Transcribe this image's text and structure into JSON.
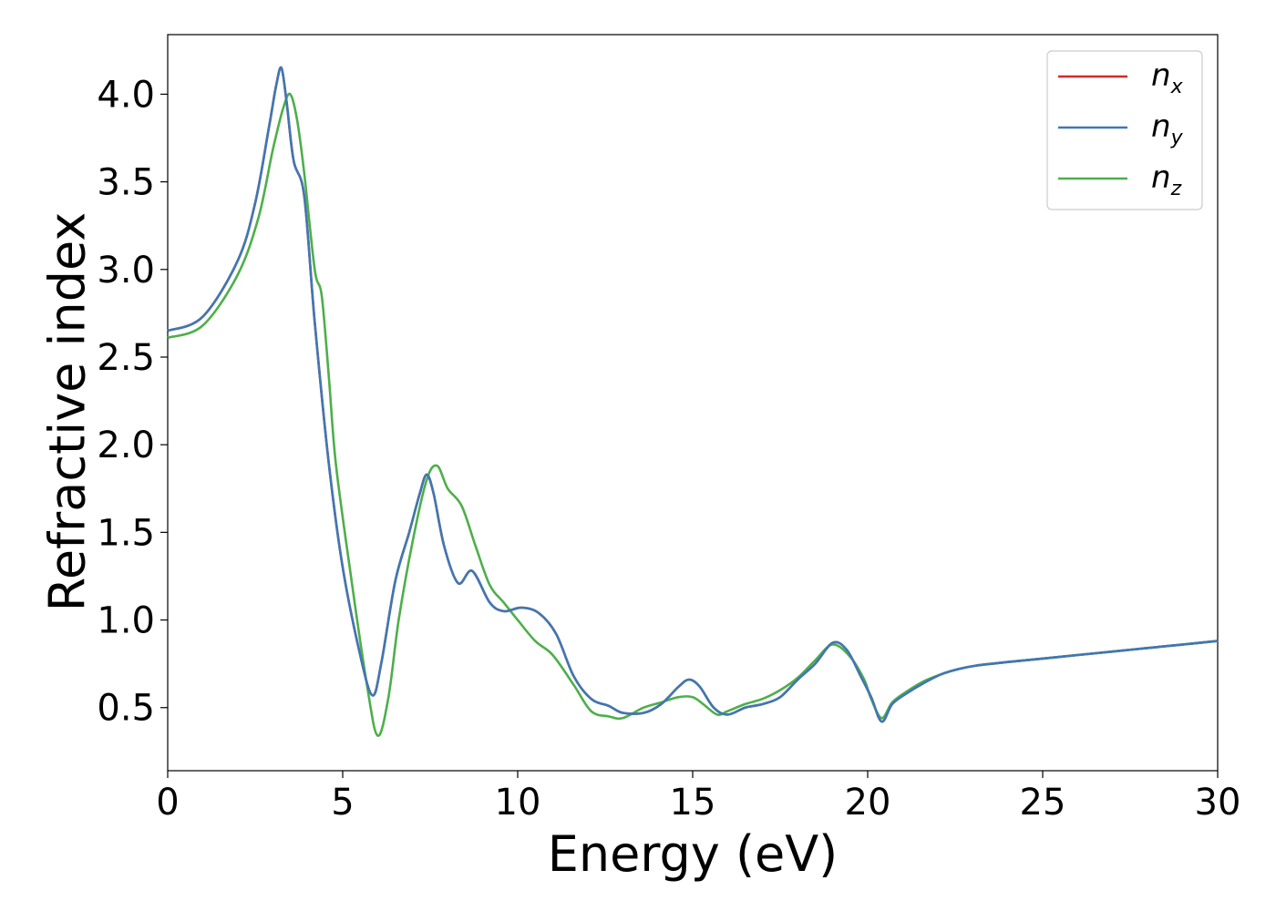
{
  "chart_data": {
    "type": "line",
    "title": "",
    "xlabel": "Energy (eV)",
    "ylabel": "Refractive index",
    "xlim": [
      0,
      30
    ],
    "ylim": [
      0.14,
      4.34
    ],
    "xticks": [
      0,
      5,
      10,
      15,
      20,
      25,
      30
    ],
    "xtick_labels": [
      "0",
      "5",
      "10",
      "15",
      "20",
      "25",
      "30"
    ],
    "yticks": [
      0.5,
      1.0,
      1.5,
      2.0,
      2.5,
      3.0,
      3.5,
      4.0
    ],
    "ytick_labels": [
      "0.5",
      "1.0",
      "1.5",
      "2.0",
      "2.5",
      "3.0",
      "3.5",
      "4.0"
    ],
    "grid": false,
    "legend_position": "top-right",
    "series": [
      {
        "name": "n",
        "subscript": "x",
        "color": "#d62728",
        "x": [
          0,
          1,
          2,
          2.5,
          2.9,
          3.1,
          3.25,
          3.4,
          3.6,
          3.9,
          4.2,
          4.6,
          5.0,
          5.5,
          5.85,
          6.1,
          6.5,
          6.9,
          7.2,
          7.4,
          7.6,
          7.9,
          8.3,
          8.7,
          9.2,
          9.6,
          10.1,
          10.6,
          11.1,
          11.6,
          12.1,
          12.6,
          13.0,
          13.6,
          14.1,
          14.6,
          14.9,
          15.2,
          15.6,
          16.0,
          16.5,
          17.0,
          17.5,
          18.0,
          18.5,
          19.0,
          19.4,
          19.8,
          20.1,
          20.4,
          20.7,
          21.1,
          21.6,
          22.1,
          22.6,
          23.1,
          24.0,
          25.0,
          26.0,
          27.0,
          28.0,
          29.0,
          30.0
        ],
        "values": [
          2.65,
          2.73,
          3.05,
          3.38,
          3.82,
          4.05,
          4.15,
          3.95,
          3.62,
          3.42,
          2.7,
          1.9,
          1.3,
          0.8,
          0.57,
          0.75,
          1.22,
          1.5,
          1.72,
          1.83,
          1.72,
          1.42,
          1.21,
          1.28,
          1.1,
          1.05,
          1.07,
          1.04,
          0.92,
          0.68,
          0.55,
          0.51,
          0.47,
          0.47,
          0.52,
          0.62,
          0.66,
          0.62,
          0.5,
          0.46,
          0.5,
          0.52,
          0.56,
          0.66,
          0.75,
          0.87,
          0.83,
          0.68,
          0.56,
          0.42,
          0.52,
          0.58,
          0.64,
          0.69,
          0.72,
          0.74,
          0.76,
          0.78,
          0.8,
          0.82,
          0.84,
          0.86,
          0.88
        ]
      },
      {
        "name": "n",
        "subscript": "y",
        "color": "#3e78b4",
        "x": [
          0,
          1,
          2,
          2.5,
          2.9,
          3.1,
          3.25,
          3.4,
          3.6,
          3.9,
          4.2,
          4.6,
          5.0,
          5.5,
          5.85,
          6.1,
          6.5,
          6.9,
          7.2,
          7.4,
          7.6,
          7.9,
          8.3,
          8.7,
          9.2,
          9.6,
          10.1,
          10.6,
          11.1,
          11.6,
          12.1,
          12.6,
          13.0,
          13.6,
          14.1,
          14.6,
          14.9,
          15.2,
          15.6,
          16.0,
          16.5,
          17.0,
          17.5,
          18.0,
          18.5,
          19.0,
          19.4,
          19.8,
          20.1,
          20.4,
          20.7,
          21.1,
          21.6,
          22.1,
          22.6,
          23.1,
          24.0,
          25.0,
          26.0,
          27.0,
          28.0,
          29.0,
          30.0
        ],
        "values": [
          2.65,
          2.73,
          3.05,
          3.38,
          3.82,
          4.05,
          4.15,
          3.95,
          3.62,
          3.42,
          2.7,
          1.9,
          1.3,
          0.8,
          0.57,
          0.75,
          1.22,
          1.5,
          1.72,
          1.83,
          1.72,
          1.42,
          1.21,
          1.28,
          1.1,
          1.05,
          1.07,
          1.04,
          0.92,
          0.68,
          0.55,
          0.51,
          0.47,
          0.47,
          0.52,
          0.62,
          0.66,
          0.62,
          0.5,
          0.46,
          0.5,
          0.52,
          0.56,
          0.66,
          0.75,
          0.87,
          0.83,
          0.68,
          0.56,
          0.42,
          0.52,
          0.58,
          0.64,
          0.69,
          0.72,
          0.74,
          0.76,
          0.78,
          0.8,
          0.82,
          0.84,
          0.86,
          0.88
        ]
      },
      {
        "name": "n",
        "subscript": "z",
        "color": "#4daf4a",
        "x": [
          0,
          1,
          2,
          2.6,
          3.0,
          3.3,
          3.5,
          3.7,
          3.9,
          4.2,
          4.4,
          4.6,
          4.8,
          5.2,
          5.7,
          6.0,
          6.3,
          6.6,
          7.0,
          7.4,
          7.7,
          8.0,
          8.4,
          8.8,
          9.2,
          9.6,
          10.0,
          10.5,
          11.0,
          11.6,
          12.1,
          12.6,
          13.0,
          13.6,
          14.1,
          14.6,
          15.0,
          15.3,
          15.7,
          16.0,
          16.5,
          17.0,
          17.5,
          18.0,
          18.5,
          19.0,
          19.5,
          19.9,
          20.1,
          20.4,
          20.7,
          21.1,
          21.6,
          22.1,
          22.6,
          23.1,
          24.0,
          25.0,
          26.0,
          27.0,
          28.0,
          29.0,
          30.0
        ],
        "values": [
          2.61,
          2.68,
          2.97,
          3.3,
          3.68,
          3.92,
          4.0,
          3.85,
          3.55,
          3.0,
          2.85,
          2.4,
          1.9,
          1.3,
          0.62,
          0.34,
          0.55,
          1.0,
          1.45,
          1.8,
          1.88,
          1.75,
          1.65,
          1.42,
          1.2,
          1.1,
          1.0,
          0.88,
          0.8,
          0.63,
          0.48,
          0.45,
          0.44,
          0.5,
          0.53,
          0.56,
          0.56,
          0.52,
          0.46,
          0.48,
          0.52,
          0.55,
          0.6,
          0.67,
          0.77,
          0.86,
          0.79,
          0.66,
          0.55,
          0.44,
          0.53,
          0.59,
          0.65,
          0.69,
          0.72,
          0.74,
          0.76,
          0.78,
          0.8,
          0.82,
          0.84,
          0.86,
          0.88
        ]
      }
    ]
  }
}
